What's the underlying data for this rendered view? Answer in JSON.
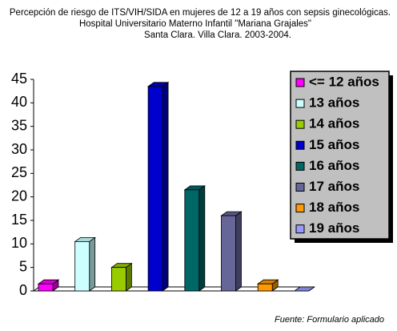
{
  "chart_data": {
    "type": "bar3d",
    "title": [
      "Percepción de riesgo de ITS/VIH/SIDA en mujeres de 12 a 19 años con sepsis ginecológicas.",
      "Hospital  Universitario Materno Infantil \"Mariana Grajales\"",
      "Santa Clara. Villa Clara. 2003-2004."
    ],
    "footnote": "Fuente: Formulario aplicado",
    "categories": [
      null
    ],
    "series": [
      {
        "name": "<= 12 años",
        "color": "#ff00ff",
        "values": [
          1.5
        ]
      },
      {
        "name": "13 años",
        "color": "#ccffff",
        "values": [
          10.5
        ]
      },
      {
        "name": "14 años",
        "color": "#99cc00",
        "values": [
          5
        ]
      },
      {
        "name": "15 años",
        "color": "#0000cc",
        "values": [
          43.5
        ]
      },
      {
        "name": "16 años",
        "color": "#006666",
        "values": [
          21.5
        ]
      },
      {
        "name": "17 años",
        "color": "#666699",
        "values": [
          16
        ]
      },
      {
        "name": "18 años",
        "color": "#ff9900",
        "values": [
          1.5
        ]
      },
      {
        "name": "19 años",
        "color": "#9999ff",
        "values": [
          0
        ]
      }
    ],
    "ylim": [
      0,
      45
    ],
    "yticks": [
      0,
      5,
      10,
      15,
      20,
      25,
      30,
      35,
      40,
      45
    ],
    "legend": "right"
  }
}
